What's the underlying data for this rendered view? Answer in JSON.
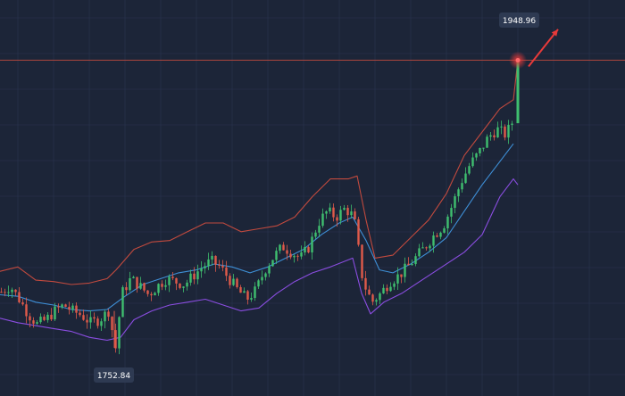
{
  "chart_data": {
    "type": "candlestick",
    "indicator": "bollinger-bands",
    "ylim": [
      1720,
      1990
    ],
    "xlim": [
      0,
      600
    ],
    "grid": true,
    "price_line": 1948.96,
    "annotations": {
      "high_label": "1948.96",
      "low_label": "1752.84"
    },
    "colors": {
      "background": "#1c2538",
      "grid": "#2a3550",
      "up_candle": "#3fbf6f",
      "down_candle": "#e05a4a",
      "upper_band": "#c24a3e",
      "middle_band": "#3e8fd6",
      "lower_band": "#8a4de0",
      "price_line": "#c24a3e",
      "arrow": "#e83a3a",
      "label_bg": "#2e3a52",
      "label_text": "#ffffff"
    },
    "series": [
      {
        "name": "price",
        "points": [
          [
            0,
            1791
          ],
          [
            10,
            1795
          ],
          [
            20,
            1786
          ],
          [
            30,
            1776
          ],
          [
            40,
            1769
          ],
          [
            50,
            1772
          ],
          [
            60,
            1778
          ],
          [
            70,
            1782
          ],
          [
            80,
            1778
          ],
          [
            90,
            1775
          ],
          [
            100,
            1770
          ],
          [
            110,
            1772
          ],
          [
            120,
            1778
          ],
          [
            128,
            1752.84
          ],
          [
            135,
            1790
          ],
          [
            145,
            1800
          ],
          [
            155,
            1795
          ],
          [
            165,
            1789
          ],
          [
            175,
            1795
          ],
          [
            185,
            1800
          ],
          [
            195,
            1798
          ],
          [
            205,
            1796
          ],
          [
            215,
            1802
          ],
          [
            225,
            1808
          ],
          [
            235,
            1812
          ],
          [
            245,
            1808
          ],
          [
            255,
            1800
          ],
          [
            265,
            1792
          ],
          [
            275,
            1786
          ],
          [
            285,
            1792
          ],
          [
            295,
            1806
          ],
          [
            305,
            1815
          ],
          [
            315,
            1822
          ],
          [
            325,
            1818
          ],
          [
            335,
            1814
          ],
          [
            345,
            1822
          ],
          [
            355,
            1838
          ],
          [
            365,
            1846
          ],
          [
            375,
            1842
          ],
          [
            385,
            1848
          ],
          [
            395,
            1842
          ],
          [
            405,
            1798
          ],
          [
            415,
            1784
          ],
          [
            425,
            1790
          ],
          [
            435,
            1798
          ],
          [
            445,
            1802
          ],
          [
            455,
            1808
          ],
          [
            465,
            1815
          ],
          [
            475,
            1822
          ],
          [
            485,
            1830
          ],
          [
            495,
            1836
          ],
          [
            505,
            1850
          ],
          [
            515,
            1866
          ],
          [
            525,
            1878
          ],
          [
            535,
            1886
          ],
          [
            545,
            1896
          ],
          [
            555,
            1902
          ],
          [
            565,
            1898
          ],
          [
            575,
            1910
          ],
          [
            580,
            1948.96
          ]
        ]
      },
      {
        "name": "upper-band",
        "points": [
          [
            0,
            1805
          ],
          [
            20,
            1808
          ],
          [
            40,
            1799
          ],
          [
            60,
            1798
          ],
          [
            80,
            1796
          ],
          [
            100,
            1797
          ],
          [
            120,
            1800
          ],
          [
            130,
            1806
          ],
          [
            150,
            1820
          ],
          [
            170,
            1825
          ],
          [
            190,
            1826
          ],
          [
            210,
            1832
          ],
          [
            230,
            1838
          ],
          [
            250,
            1838
          ],
          [
            270,
            1832
          ],
          [
            290,
            1834
          ],
          [
            310,
            1836
          ],
          [
            330,
            1842
          ],
          [
            350,
            1856
          ],
          [
            370,
            1868
          ],
          [
            390,
            1868
          ],
          [
            400,
            1870
          ],
          [
            410,
            1840
          ],
          [
            420,
            1814
          ],
          [
            440,
            1816
          ],
          [
            460,
            1828
          ],
          [
            480,
            1840
          ],
          [
            500,
            1858
          ],
          [
            520,
            1884
          ],
          [
            540,
            1900
          ],
          [
            560,
            1916
          ],
          [
            575,
            1922
          ],
          [
            580,
            1948.96
          ]
        ]
      },
      {
        "name": "middle-band",
        "points": [
          [
            0,
            1789
          ],
          [
            20,
            1788
          ],
          [
            40,
            1784
          ],
          [
            60,
            1782
          ],
          [
            80,
            1779
          ],
          [
            100,
            1778
          ],
          [
            120,
            1779
          ],
          [
            140,
            1788
          ],
          [
            160,
            1796
          ],
          [
            180,
            1800
          ],
          [
            200,
            1804
          ],
          [
            220,
            1806
          ],
          [
            240,
            1810
          ],
          [
            260,
            1808
          ],
          [
            280,
            1804
          ],
          [
            300,
            1808
          ],
          [
            320,
            1814
          ],
          [
            340,
            1820
          ],
          [
            360,
            1830
          ],
          [
            380,
            1838
          ],
          [
            395,
            1842
          ],
          [
            410,
            1826
          ],
          [
            425,
            1806
          ],
          [
            440,
            1804
          ],
          [
            460,
            1810
          ],
          [
            480,
            1818
          ],
          [
            500,
            1828
          ],
          [
            520,
            1846
          ],
          [
            540,
            1864
          ],
          [
            560,
            1880
          ],
          [
            575,
            1892
          ]
        ]
      },
      {
        "name": "lower-band",
        "points": [
          [
            0,
            1773
          ],
          [
            20,
            1770
          ],
          [
            40,
            1768
          ],
          [
            60,
            1766
          ],
          [
            80,
            1764
          ],
          [
            100,
            1760
          ],
          [
            120,
            1758
          ],
          [
            135,
            1760
          ],
          [
            150,
            1772
          ],
          [
            170,
            1778
          ],
          [
            190,
            1782
          ],
          [
            210,
            1784
          ],
          [
            230,
            1786
          ],
          [
            250,
            1782
          ],
          [
            270,
            1778
          ],
          [
            290,
            1780
          ],
          [
            310,
            1790
          ],
          [
            330,
            1798
          ],
          [
            350,
            1804
          ],
          [
            370,
            1808
          ],
          [
            395,
            1814
          ],
          [
            405,
            1790
          ],
          [
            415,
            1776
          ],
          [
            430,
            1784
          ],
          [
            450,
            1790
          ],
          [
            470,
            1798
          ],
          [
            490,
            1806
          ],
          [
            505,
            1812
          ],
          [
            520,
            1818
          ],
          [
            540,
            1830
          ],
          [
            560,
            1856
          ],
          [
            575,
            1868
          ],
          [
            580,
            1864
          ]
        ]
      }
    ]
  }
}
